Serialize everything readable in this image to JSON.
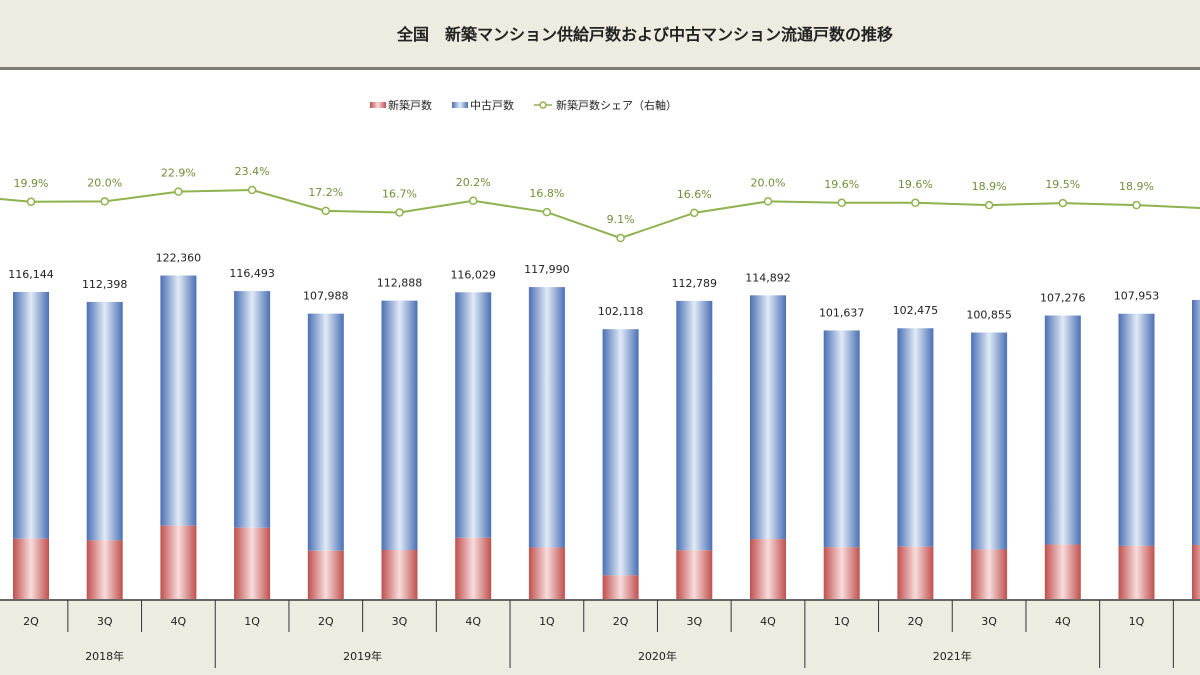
{
  "chart_data": {
    "type": "bar",
    "title": "全国　新築マンション供給戸数および中古マンション流通戸数の推移",
    "legend": [
      "新築戸数",
      "中古戸数",
      "新築戸数シェア（右軸）"
    ],
    "legend_placement": "top-center",
    "categories": [
      "2Q",
      "3Q",
      "4Q",
      "1Q",
      "2Q",
      "3Q",
      "4Q",
      "1Q",
      "2Q",
      "3Q",
      "4Q",
      "1Q",
      "2Q",
      "3Q",
      "4Q",
      "1Q"
    ],
    "years": [
      {
        "label": "2018年",
        "count": 3
      },
      {
        "label": "2019年",
        "count": 4
      },
      {
        "label": "2020年",
        "count": 4
      },
      {
        "label": "2021年",
        "count": 4
      },
      {
        "label": "",
        "count": 1
      }
    ],
    "total_labels": [
      "116,144",
      "112,398",
      "122,360",
      "116,493",
      "107,988",
      "112,888",
      "116,029",
      "117,990",
      "102,118",
      "112,789",
      "114,892",
      "101,637",
      "102,475",
      "100,855",
      "107,276",
      "107,953"
    ],
    "totals": [
      116144,
      112398,
      122360,
      116493,
      107988,
      112888,
      116029,
      117990,
      102118,
      112789,
      114892,
      101637,
      102475,
      100855,
      107276,
      107953
    ],
    "share_labels": [
      "19.9%",
      "20.0%",
      "22.9%",
      "23.4%",
      "17.2%",
      "16.7%",
      "20.2%",
      "16.8%",
      "9.1%",
      "16.6%",
      "20.0%",
      "19.6%",
      "19.6%",
      "18.9%",
      "19.5%",
      "18.9%"
    ],
    "share": [
      19.9,
      20.0,
      22.9,
      23.4,
      17.2,
      16.7,
      20.2,
      16.8,
      9.1,
      16.6,
      20.0,
      19.6,
      19.6,
      18.9,
      19.5,
      18.9
    ],
    "stacked": true,
    "grid": false,
    "colors": {
      "new": "#c0504d",
      "used": "#4f78bd",
      "share": "#8fb14e",
      "panel": "#eeebe0"
    }
  }
}
